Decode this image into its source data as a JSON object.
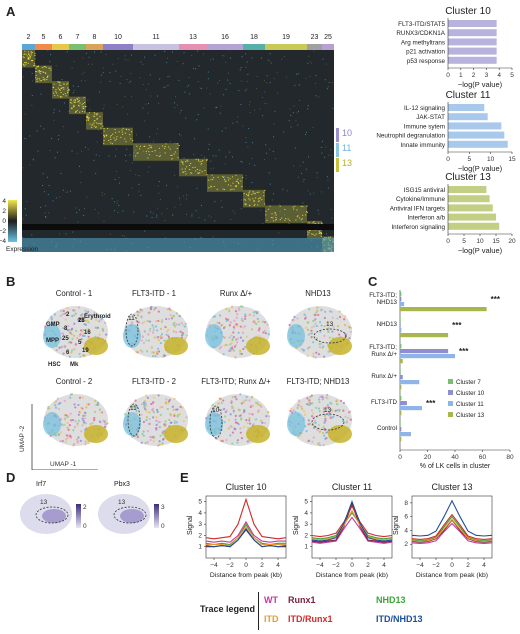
{
  "panels": {
    "A": "A",
    "B": "B",
    "C": "C",
    "D": "D",
    "E": "E"
  },
  "heatmap": {
    "clusters": [
      "2",
      "5",
      "6",
      "7",
      "8",
      "10",
      "11",
      "13",
      "16",
      "18",
      "19",
      "23",
      "25"
    ],
    "colors": [
      "#5aa6d6",
      "#f08a4b",
      "#e6c84a",
      "#79bf72",
      "#d9a35a",
      "#8f7fc7",
      "#c9c1e0",
      "#e58fb4",
      "#b5a3d4",
      "#57b0a8",
      "#c9c95a",
      "#a0a0a0",
      "#b9a0d0"
    ],
    "side_labels": [
      "10",
      "11",
      "13"
    ],
    "scale_labels": [
      "4",
      "2",
      "0",
      "−2",
      "−4"
    ],
    "scale_title": "Expression"
  },
  "bar_charts": [
    {
      "title": "Cluster 10",
      "color": "#b7b3dd",
      "categories": [
        "FLT3-ITD/STAT5",
        "RUNX3/CDKN1A",
        "Arg methyltrans",
        "p21 activation",
        "p53 response"
      ],
      "values": [
        3.8,
        3.8,
        3.8,
        3.8,
        3.8
      ],
      "ticks": [
        "0",
        "1",
        "2",
        "3",
        "4",
        "5"
      ],
      "max": 5,
      "xlabel": "−log(P value)"
    },
    {
      "title": "Cluster 11",
      "color": "#a8c8ec",
      "categories": [
        "IL-12 signaling",
        "JAK-STAT",
        "Immune sytem",
        "Neutrophil degranulation",
        "Innate immunity"
      ],
      "values": [
        8.5,
        9.3,
        12.5,
        13.2,
        14
      ],
      "ticks": [
        "0",
        "5",
        "10",
        "15"
      ],
      "max": 15,
      "xlabel": "−log(P value)"
    },
    {
      "title": "Cluster 13",
      "color": "#c4cf86",
      "categories": [
        "ISG15 antiviral",
        "Cytokine/Immune",
        "Antiviral IFN targets",
        "Interferon a/b",
        "Interferon signaling"
      ],
      "values": [
        12,
        13,
        14,
        15,
        16
      ],
      "ticks": [
        "0",
        "5",
        "10",
        "15",
        "20"
      ],
      "max": 20,
      "xlabel": "−log(P value)"
    }
  ],
  "umap": {
    "titles": [
      "Control - 1",
      "FLT3-ITD - 1",
      "Runx Δ/+",
      "NHD13",
      "Control - 2",
      "FLT3-ITD - 2",
      "FLT3-ITD; Runx Δ/+",
      "FLT3-ITD; NHD13"
    ],
    "cell_labels": [
      "GMP",
      "MPP",
      "HSC",
      "Mk",
      "Erythroid",
      "2",
      "23",
      "8",
      "25",
      "5",
      "6",
      "16",
      "18",
      "19"
    ],
    "circle_labels": [
      "11",
      "10",
      "13",
      "11",
      "10",
      "13"
    ],
    "xlabel": "UMAP -1",
    "ylabel": "UMAP -2"
  },
  "chart_data": [
    {
      "type": "bar",
      "orientation": "horizontal",
      "categories": [
        "FLT3-ITD; NHD13",
        "NHD13",
        "FLT3-ITD; Runx Δ/+",
        "Runx Δ/+",
        "FLT3-ITD",
        "Control"
      ],
      "series": [
        {
          "name": "Cluster 7",
          "color": "#79bf72",
          "values": [
            1,
            0.5,
            1,
            0.5,
            1,
            0.5
          ]
        },
        {
          "name": "Cluster 10",
          "color": "#8f8fd0",
          "values": [
            1,
            0.5,
            35,
            2,
            5,
            1
          ]
        },
        {
          "name": "Cluster 11",
          "color": "#8fb4e8",
          "values": [
            3,
            1,
            40,
            14,
            16,
            8
          ]
        },
        {
          "name": "Cluster 13",
          "color": "#a8b64d",
          "values": [
            63,
            35,
            2,
            1,
            1,
            1
          ]
        }
      ],
      "significance": [
        "***",
        "***",
        "***",
        "",
        "***",
        ""
      ],
      "xticks": [
        "0",
        "20",
        "40",
        "60",
        "80"
      ],
      "xlim": [
        0,
        80
      ],
      "xlabel": "% of LK cells in cluster"
    },
    {
      "type": "line",
      "title": "Cluster 10",
      "x": [
        -5,
        -4,
        -3,
        -2,
        -1,
        0,
        1,
        2,
        3,
        4,
        5
      ],
      "ylim": [
        0,
        5.5
      ],
      "yticks": [
        "1",
        "2",
        "3",
        "4",
        "5"
      ],
      "xticks": [
        "−4",
        "−2",
        "0",
        "2",
        "4"
      ],
      "xlabel": "Distance from peak (kb)",
      "ylabel": "Signal",
      "series": [
        {
          "name": "WT",
          "color": "#c8379f",
          "values": [
            1.5,
            1.4,
            1.5,
            1.4,
            2.0,
            3.2,
            2.0,
            1.5,
            1.4,
            1.5,
            1.5
          ]
        },
        {
          "name": "Runx1",
          "color": "#7a1f3a",
          "values": [
            1.0,
            1.0,
            1.1,
            1.0,
            1.6,
            2.5,
            1.6,
            1.0,
            1.1,
            1.0,
            1.0
          ]
        },
        {
          "name": "NHD13",
          "color": "#3aa63a",
          "values": [
            1.3,
            1.2,
            1.3,
            1.2,
            1.8,
            3.0,
            1.8,
            1.3,
            1.2,
            1.3,
            1.3
          ]
        },
        {
          "name": "ITD",
          "color": "#e89a2e",
          "values": [
            1.2,
            1.2,
            1.2,
            1.1,
            1.8,
            2.8,
            1.8,
            1.2,
            1.2,
            1.2,
            1.2
          ]
        },
        {
          "name": "ITD/Runx1",
          "color": "#d02b2b",
          "values": [
            1.8,
            1.7,
            1.8,
            1.9,
            3.0,
            5.2,
            3.0,
            1.9,
            1.8,
            1.7,
            1.8
          ]
        },
        {
          "name": "ITD/NHD13",
          "color": "#1c4f9a",
          "values": [
            1.1,
            1.0,
            1.1,
            1.0,
            1.6,
            2.6,
            1.6,
            1.0,
            1.1,
            1.0,
            1.1
          ]
        }
      ]
    },
    {
      "type": "line",
      "title": "Cluster 11",
      "x": [
        -5,
        -4,
        -3,
        -2,
        -1,
        0,
        1,
        2,
        3,
        4,
        5
      ],
      "ylim": [
        0,
        5.5
      ],
      "yticks": [
        "1",
        "2",
        "3",
        "4",
        "5"
      ],
      "xticks": [
        "−4",
        "−2",
        "0",
        "2",
        "4"
      ],
      "xlabel": "Distance from peak (kb)",
      "ylabel": "Signal",
      "series": [
        {
          "name": "WT",
          "color": "#c8379f",
          "values": [
            1.4,
            1.3,
            1.4,
            1.5,
            2.6,
            3.6,
            2.6,
            1.5,
            1.4,
            1.3,
            1.4
          ]
        },
        {
          "name": "Runx1",
          "color": "#7a1f3a",
          "values": [
            1.5,
            1.4,
            1.5,
            1.6,
            2.8,
            4.8,
            2.8,
            1.6,
            1.5,
            1.4,
            1.5
          ]
        },
        {
          "name": "NHD13",
          "color": "#3aa63a",
          "values": [
            1.8,
            1.7,
            1.8,
            2.0,
            3.0,
            4.0,
            3.0,
            2.0,
            1.8,
            1.7,
            1.8
          ]
        },
        {
          "name": "ITD",
          "color": "#e89a2e",
          "values": [
            1.7,
            1.6,
            1.7,
            1.9,
            2.9,
            4.2,
            2.9,
            1.9,
            1.7,
            1.6,
            1.7
          ]
        },
        {
          "name": "ITD/Runx1",
          "color": "#d02b2b",
          "values": [
            2.0,
            1.9,
            2.0,
            2.2,
            3.2,
            4.6,
            3.2,
            2.2,
            2.0,
            1.9,
            2.0
          ]
        },
        {
          "name": "ITD/NHD13",
          "color": "#1c4f9a",
          "values": [
            1.6,
            1.5,
            1.6,
            1.8,
            3.1,
            5.0,
            3.1,
            1.8,
            1.6,
            1.5,
            1.6
          ]
        }
      ]
    },
    {
      "type": "line",
      "title": "Cluster 13",
      "x": [
        -5,
        -4,
        -3,
        -2,
        -1,
        0,
        1,
        2,
        3,
        4,
        5
      ],
      "ylim": [
        0,
        9
      ],
      "yticks": [
        "2",
        "4",
        "6",
        "8"
      ],
      "xticks": [
        "−4",
        "−2",
        "0",
        "2",
        "4"
      ],
      "xlabel": "Distance from peak (kb)",
      "ylabel": "Signal",
      "series": [
        {
          "name": "WT",
          "color": "#c8379f",
          "values": [
            2.2,
            2.1,
            2.2,
            2.5,
            3.8,
            5.0,
            3.8,
            2.5,
            2.2,
            2.1,
            2.2
          ]
        },
        {
          "name": "Runx1",
          "color": "#7a1f3a",
          "values": [
            2.4,
            2.3,
            2.4,
            2.8,
            4.0,
            5.5,
            4.0,
            2.8,
            2.4,
            2.3,
            2.4
          ]
        },
        {
          "name": "NHD13",
          "color": "#3aa63a",
          "values": [
            2.6,
            2.5,
            2.6,
            3.0,
            4.5,
            6.0,
            4.5,
            3.0,
            2.6,
            2.5,
            2.6
          ]
        },
        {
          "name": "ITD",
          "color": "#e89a2e",
          "values": [
            2.5,
            2.4,
            2.5,
            2.9,
            4.2,
            5.6,
            4.2,
            2.9,
            2.5,
            2.4,
            2.5
          ]
        },
        {
          "name": "ITD/Runx1",
          "color": "#d02b2b",
          "values": [
            2.8,
            2.7,
            2.8,
            3.2,
            4.8,
            6.3,
            4.8,
            3.2,
            2.8,
            2.7,
            2.8
          ]
        },
        {
          "name": "ITD/NHD13",
          "color": "#1c4f9a",
          "values": [
            3.3,
            3.2,
            3.3,
            3.9,
            6.0,
            8.3,
            6.0,
            3.9,
            3.3,
            3.2,
            3.3
          ]
        }
      ]
    }
  ],
  "panel_d": {
    "genes": [
      "Irf7",
      "Pbx3"
    ],
    "circle_label": "13",
    "scale1": [
      "2",
      "0"
    ],
    "scale2": [
      "3",
      "0"
    ]
  },
  "trace_legend": {
    "title": "Trace legend"
  }
}
